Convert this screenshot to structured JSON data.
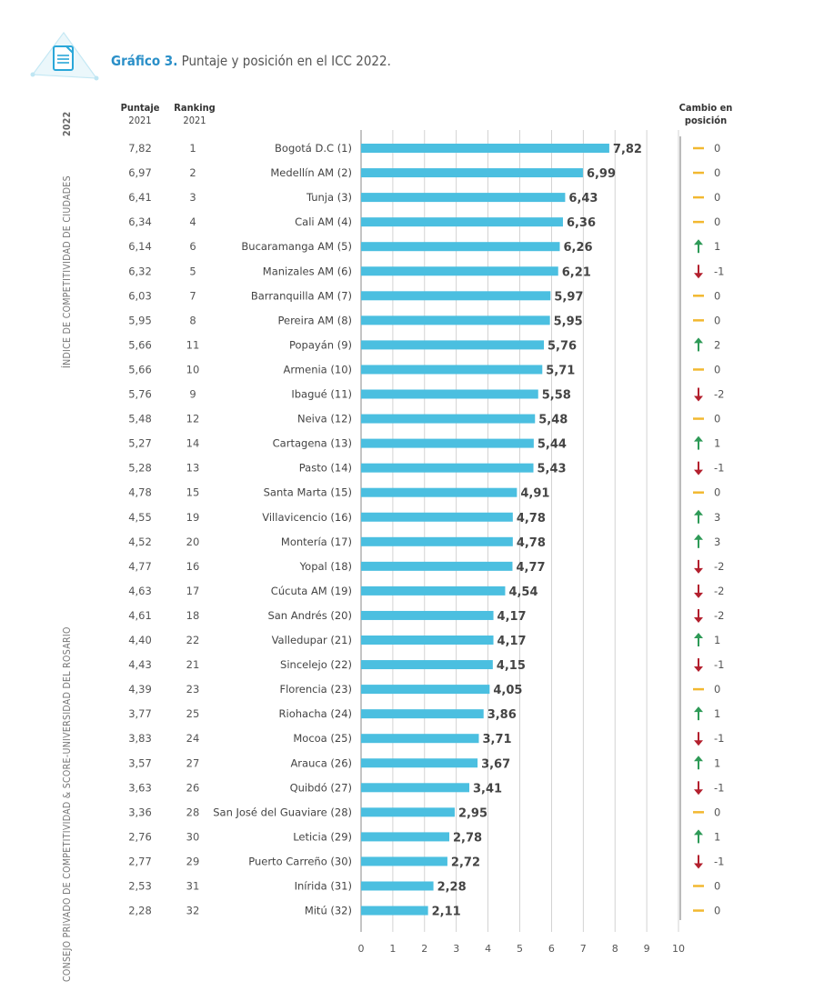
{
  "header": {
    "title_label": "Gráfico 3.",
    "title_text": " Puntaje y posición en el ICC 2022.",
    "side_year": "2022",
    "side_top": "ÍNDICE DE COMPETITIVIDAD DE CIUDADES",
    "side_bottom": "CONSEJO PRIVADO DE COMPETITIVIDAD & SCORE-UNIVERSIDAD DEL ROSARIO"
  },
  "columns": {
    "puntaje_title": "Puntaje",
    "puntaje_year": "2021",
    "ranking_title": "Ranking",
    "ranking_year": "2021",
    "cambio_title_1": "Cambio en",
    "cambio_title_2": "posición"
  },
  "colors": {
    "bar": "#4bbfe0",
    "title_accent": "#2a8fc8",
    "up": "#2e9a57",
    "down": "#b3202e",
    "same": "#f2b830",
    "grid": "#c8c8c8"
  },
  "chart_data": {
    "type": "bar",
    "orientation": "horizontal",
    "xlim": [
      0,
      10
    ],
    "xticks": [
      "0",
      "1",
      "2",
      "3",
      "4",
      "5",
      "6",
      "7",
      "8",
      "9",
      "10"
    ],
    "grid": true,
    "categories": [
      "Bogotá D.C (1)",
      "Medellín AM (2)",
      "Tunja (3)",
      "Cali AM (4)",
      "Bucaramanga AM (5)",
      "Manizales AM (6)",
      "Barranquilla AM (7)",
      "Pereira AM (8)",
      "Popayán (9)",
      "Armenia (10)",
      "Ibagué (11)",
      "Neiva (12)",
      "Cartagena (13)",
      "Pasto (14)",
      "Santa Marta (15)",
      "Villavicencio (16)",
      "Montería (17)",
      "Yopal (18)",
      "Cúcuta AM (19)",
      "San Andrés (20)",
      "Valledupar (21)",
      "Sincelejo (22)",
      "Florencia (23)",
      "Riohacha (24)",
      "Mocoa (25)",
      "Arauca (26)",
      "Quibdó (27)",
      "San José del Guaviare (28)",
      "Leticia (29)",
      "Puerto Carreño (30)",
      "Inírida (31)",
      "Mitú (32)"
    ],
    "values": [
      7.82,
      6.99,
      6.43,
      6.36,
      6.26,
      6.21,
      5.97,
      5.95,
      5.76,
      5.71,
      5.58,
      5.48,
      5.44,
      5.43,
      4.91,
      4.78,
      4.78,
      4.77,
      4.54,
      4.17,
      4.17,
      4.15,
      4.05,
      3.86,
      3.71,
      3.67,
      3.41,
      2.95,
      2.78,
      2.72,
      2.28,
      2.11
    ],
    "value_labels": [
      "7,82",
      "6,99",
      "6,43",
      "6,36",
      "6,26",
      "6,21",
      "5,97",
      "5,95",
      "5,76",
      "5,71",
      "5,58",
      "5,48",
      "5,44",
      "5,43",
      "4,91",
      "4,78",
      "4,78",
      "4,77",
      "4,54",
      "4,17",
      "4,17",
      "4,15",
      "4,05",
      "3,86",
      "3,71",
      "3,67",
      "3,41",
      "2,95",
      "2,78",
      "2,72",
      "2,28",
      "2,11"
    ],
    "puntaje_2021": [
      "7,82",
      "6,97",
      "6,41",
      "6,34",
      "6,14",
      "6,32",
      "6,03",
      "5,95",
      "5,66",
      "5,66",
      "5,76",
      "5,48",
      "5,27",
      "5,28",
      "4,78",
      "4,55",
      "4,52",
      "4,77",
      "4,63",
      "4,61",
      "4,40",
      "4,43",
      "4,39",
      "3,77",
      "3,83",
      "3,57",
      "3,63",
      "3,36",
      "2,76",
      "2,77",
      "2,53",
      "2,28"
    ],
    "ranking_2021": [
      "1",
      "2",
      "3",
      "4",
      "6",
      "5",
      "7",
      "8",
      "11",
      "10",
      "9",
      "12",
      "14",
      "13",
      "15",
      "19",
      "20",
      "16",
      "17",
      "18",
      "22",
      "21",
      "23",
      "25",
      "24",
      "27",
      "26",
      "28",
      "30",
      "29",
      "31",
      "32"
    ],
    "cambio": [
      "0",
      "0",
      "0",
      "0",
      "1",
      "-1",
      "0",
      "0",
      "2",
      "0",
      "-2",
      "0",
      "1",
      "-1",
      "0",
      "3",
      "3",
      "-2",
      "-2",
      "-2",
      "1",
      "-1",
      "0",
      "1",
      "-1",
      "1",
      "-1",
      "0",
      "1",
      "-1",
      "0",
      "0"
    ],
    "cambio_dir": [
      "same",
      "same",
      "same",
      "same",
      "up",
      "down",
      "same",
      "same",
      "up",
      "same",
      "down",
      "same",
      "up",
      "down",
      "same",
      "up",
      "up",
      "down",
      "down",
      "down",
      "up",
      "down",
      "same",
      "up",
      "down",
      "up",
      "down",
      "same",
      "up",
      "down",
      "same",
      "same"
    ]
  }
}
